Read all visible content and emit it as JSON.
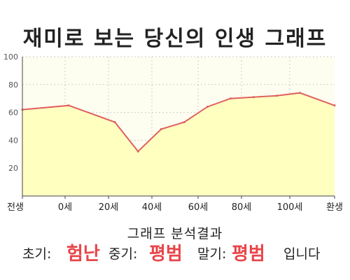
{
  "title": "재미로 보는 당신의 인생 그래프",
  "chart_data": {
    "type": "area",
    "x_labels": [
      "전생",
      "0세",
      "20세",
      "40세",
      "60세",
      "80세",
      "100세",
      "환생"
    ],
    "x": [
      -20,
      0,
      20,
      30,
      40,
      50,
      60,
      70,
      80,
      90,
      100,
      115
    ],
    "y": [
      62,
      65,
      53,
      32,
      48,
      53,
      64,
      70,
      71,
      72,
      74,
      65
    ],
    "ylim": [
      0,
      100
    ],
    "y_ticks": [
      20,
      40,
      60,
      80,
      100
    ],
    "grid": true,
    "colors": {
      "fill": "#ffffc0",
      "line": "#e06060",
      "plot_bg": "#fefef0",
      "grid": "#cccccc"
    }
  },
  "result": {
    "title": "그래프 분석결과",
    "early_label": "초기:",
    "early_value": "험난",
    "mid_label": "중기:",
    "mid_value": "평범",
    "late_label": "말기:",
    "late_value": "평범",
    "suffix": "입니다"
  }
}
